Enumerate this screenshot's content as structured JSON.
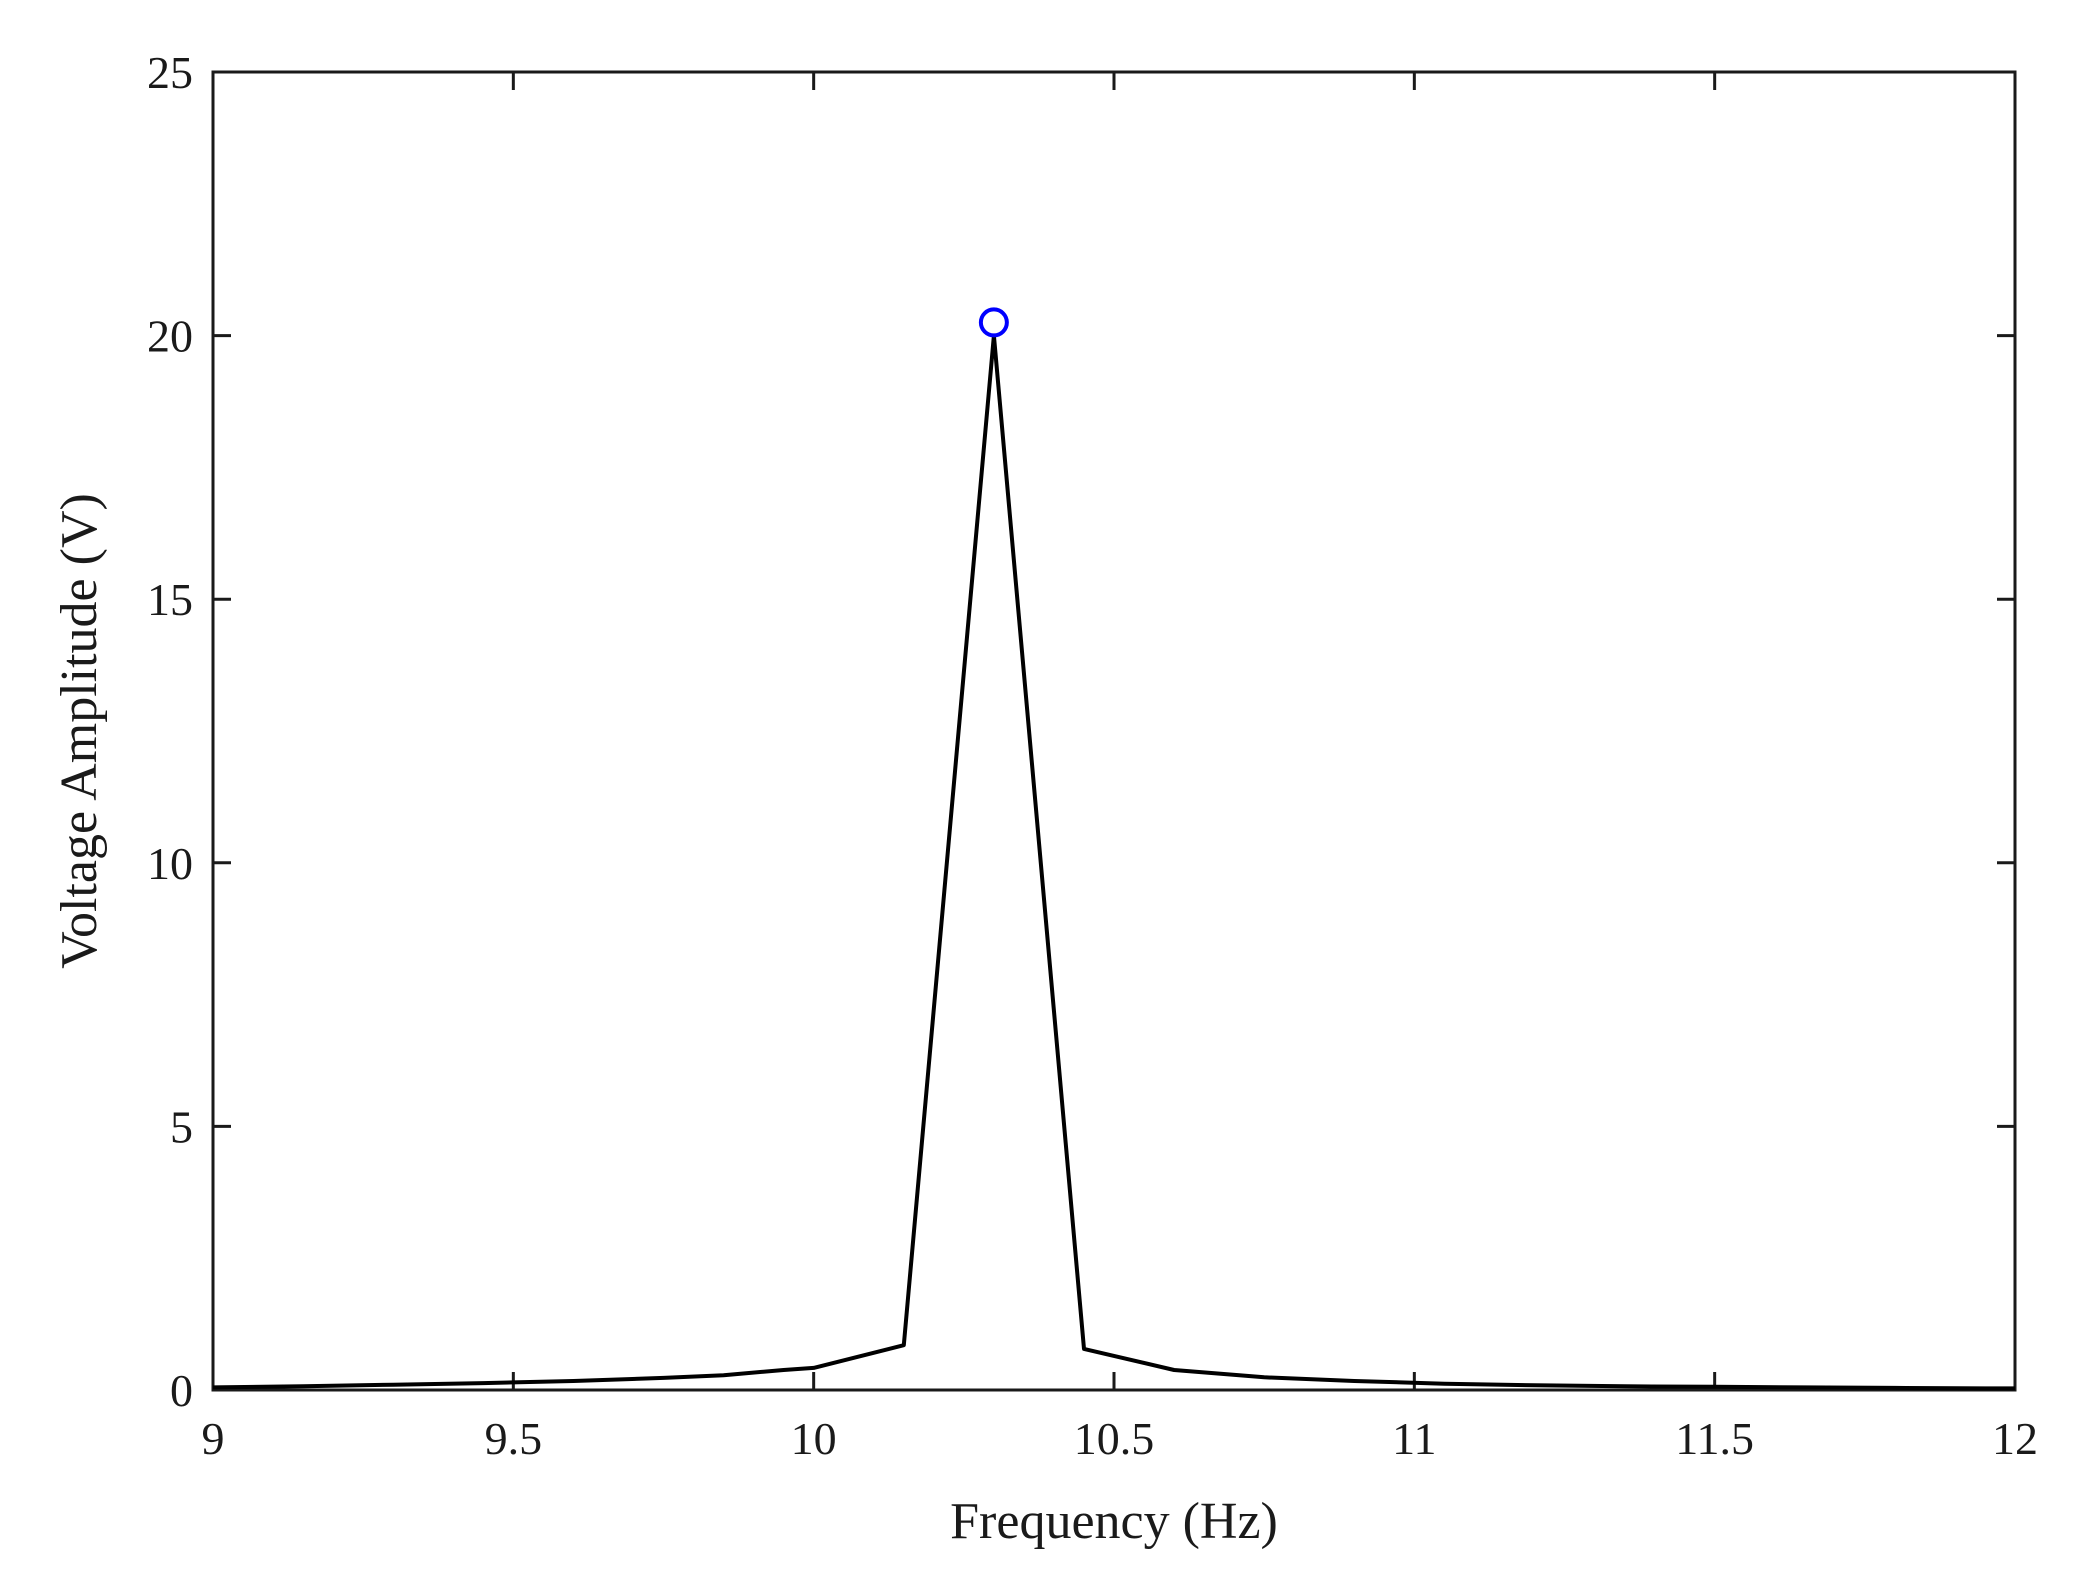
{
  "chart_data": {
    "type": "line",
    "title": "",
    "xlabel": "Frequency (Hz)",
    "ylabel": "Voltage Amplitude (V)",
    "xlim": [
      9,
      12
    ],
    "ylim": [
      0,
      25
    ],
    "xticks": [
      9,
      9.5,
      10,
      10.5,
      11,
      11.5,
      12
    ],
    "xtick_labels": [
      "9",
      "9.5",
      "10",
      "10.5",
      "11",
      "11.5",
      "12"
    ],
    "yticks": [
      0,
      5,
      10,
      15,
      20,
      25
    ],
    "ytick_labels": [
      "0",
      "5",
      "10",
      "15",
      "20",
      "25"
    ],
    "grid": false,
    "box": true,
    "series": [
      {
        "color": "#000000",
        "x": [
          9.0,
          9.15,
          9.3,
          9.45,
          9.6,
          9.75,
          9.85,
          9.95,
          10.0,
          10.15,
          10.3,
          10.45,
          10.6,
          10.75,
          10.9,
          11.05,
          11.2,
          11.35,
          11.5,
          11.65,
          11.8,
          11.95,
          12.0
        ],
        "y": [
          0.05,
          0.07,
          0.1,
          0.13,
          0.17,
          0.23,
          0.28,
          0.38,
          0.42,
          0.85,
          20.0,
          0.78,
          0.38,
          0.24,
          0.17,
          0.12,
          0.09,
          0.07,
          0.06,
          0.05,
          0.04,
          0.03,
          0.03
        ]
      }
    ],
    "markers": [
      {
        "x": 10.3,
        "y": 20.25,
        "shape": "circle",
        "color": "#0000ff"
      }
    ]
  }
}
